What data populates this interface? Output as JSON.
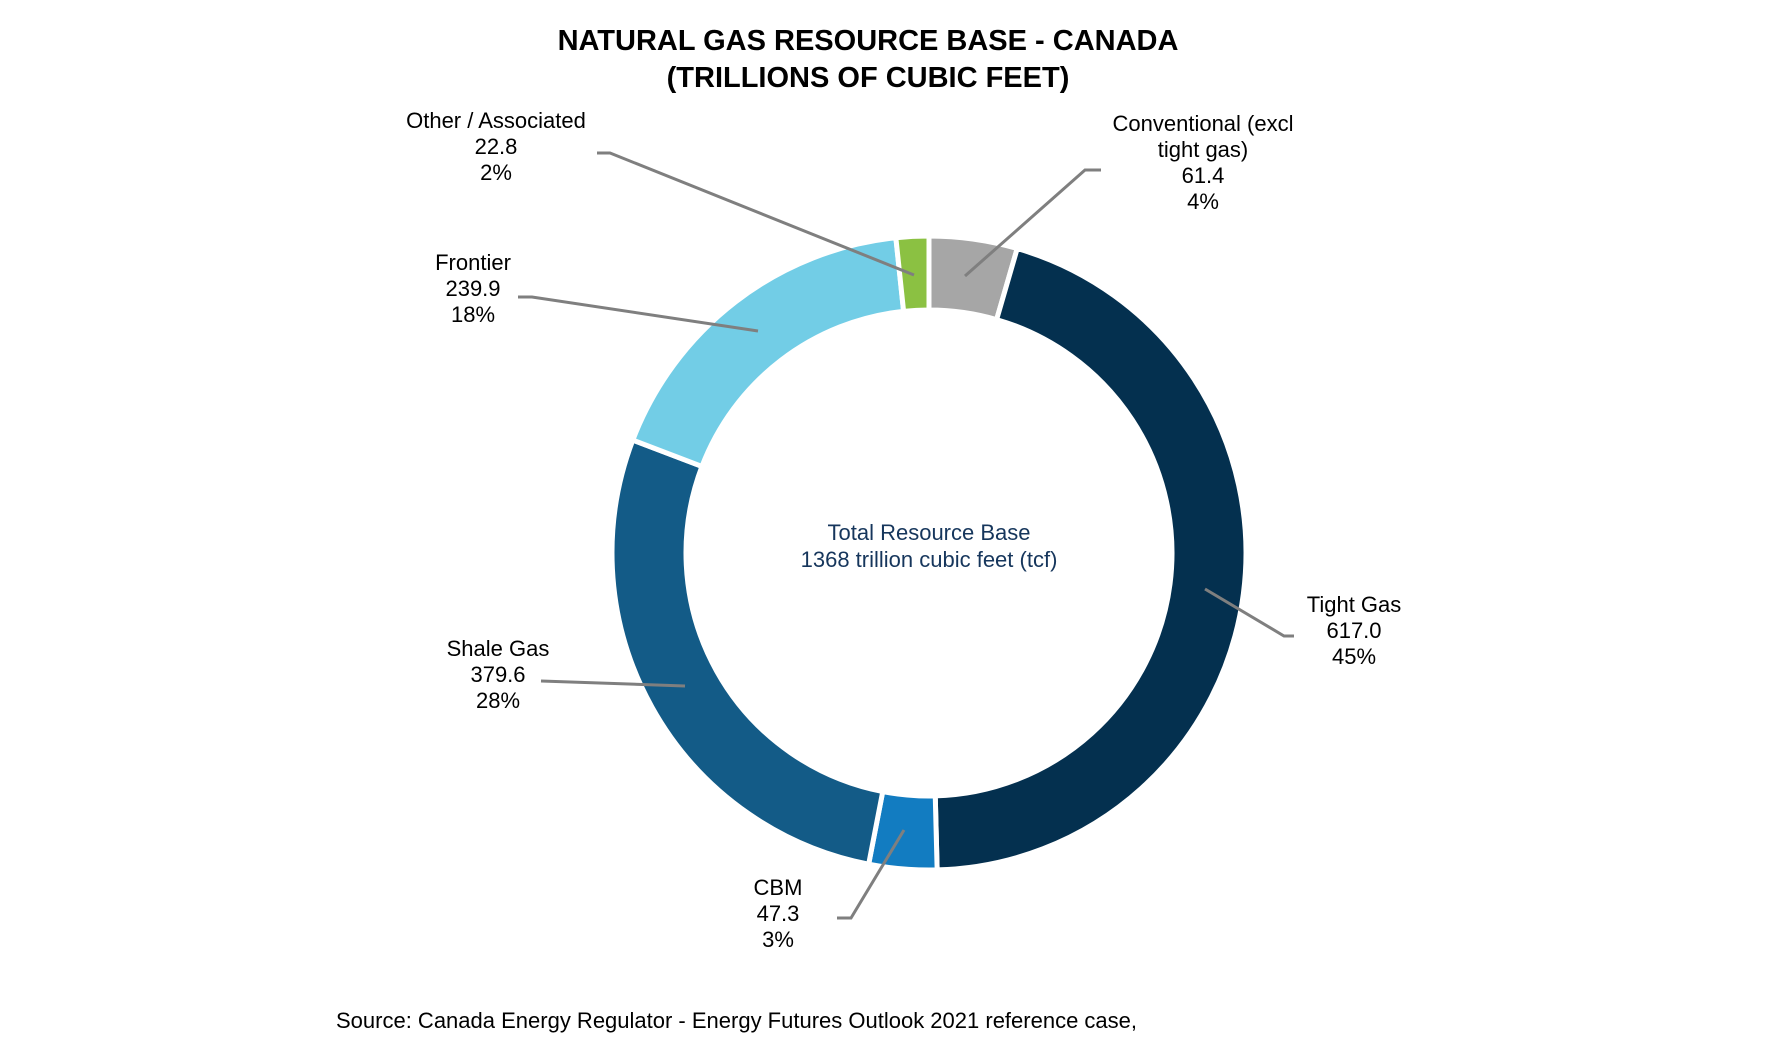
{
  "chart_data": {
    "type": "pie",
    "variant": "donut",
    "title": "NATURAL GAS RESOURCE BASE - CANADA",
    "subtitle": "(TRILLIONS OF CUBIC FEET)",
    "center_label": {
      "line1": "Total Resource Base",
      "line2": "1368 trillion cubic feet (tcf)",
      "color": "#16365c"
    },
    "slices": [
      {
        "name": "Conventional (excl tight gas)",
        "label_lines": [
          "Conventional (excl",
          "tight gas)"
        ],
        "value": 61.4,
        "value_text": "61.4",
        "percent_text": "4%",
        "color": "#a6a6a6"
      },
      {
        "name": "Tight Gas",
        "label_lines": [
          "Tight Gas"
        ],
        "value": 617.0,
        "value_text": "617.0",
        "percent_text": "45%",
        "color": "#04304f"
      },
      {
        "name": "CBM",
        "label_lines": [
          "CBM"
        ],
        "value": 47.3,
        "value_text": "47.3",
        "percent_text": "3%",
        "color": "#127cc1"
      },
      {
        "name": "Shale Gas",
        "label_lines": [
          "Shale Gas"
        ],
        "value": 379.6,
        "value_text": "379.6",
        "percent_text": "28%",
        "color": "#135b87"
      },
      {
        "name": "Frontier",
        "label_lines": [
          "Frontier"
        ],
        "value": 239.9,
        "value_text": "239.9",
        "percent_text": "18%",
        "color": "#72cde6"
      },
      {
        "name": "Other / Associated",
        "label_lines": [
          "Other / Associated"
        ],
        "value": 22.8,
        "value_text": "22.8",
        "percent_text": "2%",
        "color": "#8bc142"
      }
    ],
    "legend": "none"
  },
  "source": "Source: Canada Energy Regulator - Energy Futures Outlook 2021 reference case,"
}
